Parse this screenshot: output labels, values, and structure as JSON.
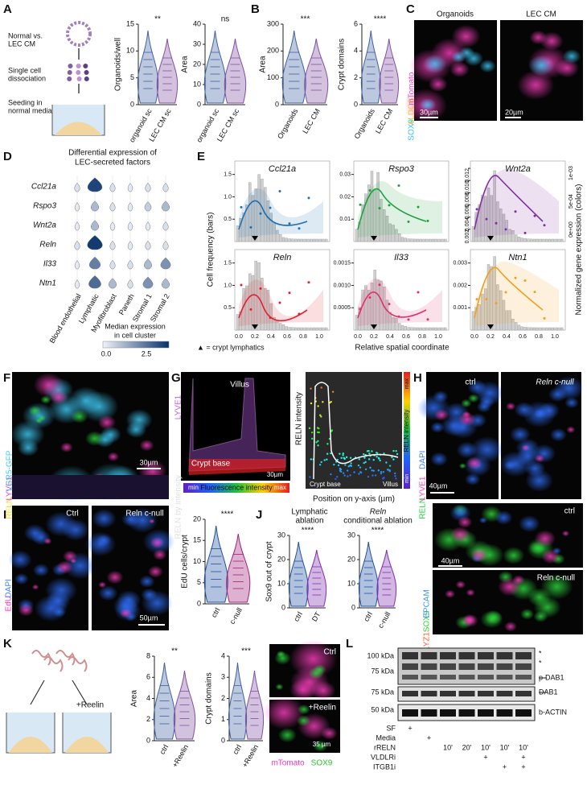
{
  "A": {
    "label": "A",
    "schematic": [
      "Normal vs.",
      "LEC CM",
      "Single cell",
      "dissociation",
      "Seeding in",
      "normal media"
    ],
    "plot1": {
      "ylabel": "Organoids/well",
      "yticks": [
        0,
        5,
        10,
        15
      ],
      "significance": "**",
      "categories": [
        "organoid sc",
        "LEC CM sc"
      ]
    },
    "plot2": {
      "ylabel": "Area",
      "yticks": [
        0,
        10,
        20,
        30,
        40
      ],
      "significance": "ns",
      "categories": [
        "organoid sc",
        "LEC CM sc"
      ]
    }
  },
  "B": {
    "label": "B",
    "plot1": {
      "ylabel": "Area",
      "yticks": [
        0,
        100,
        200,
        300
      ],
      "significance": "***",
      "categories": [
        "Organoids",
        "LEC CM"
      ]
    },
    "plot2": {
      "ylabel": "Crypt domains",
      "yticks": [
        0,
        2,
        4,
        6
      ],
      "significance": "****",
      "categories": [
        "Organoids",
        "LEC CM"
      ]
    }
  },
  "C": {
    "label": "C",
    "titles": [
      "Organoids",
      "LEC CM"
    ],
    "stain": [
      "SOX9",
      "ALDOB",
      "mTomato"
    ],
    "scales": [
      "30µm",
      "20µm"
    ]
  },
  "D": {
    "label": "D",
    "title": [
      "Differential expression of",
      "LEC-secreted factors"
    ],
    "genes": [
      "Ccl21a",
      "Rspo3",
      "Wnt2a",
      "Reln",
      "Il33",
      "Ntn1"
    ],
    "cells": [
      "Blood endothelial",
      "Lymphatic",
      "Myofibroblast",
      "Paneth",
      "Stromal 1",
      "Stromal 2"
    ],
    "colorbar": {
      "label": [
        "Median expression",
        "in cell cluster"
      ],
      "ticks": [
        "0.0",
        "2.5"
      ]
    }
  },
  "E": {
    "label": "E",
    "ylabel": "Cell frequency (bars)",
    "y2label": "Normalized gene expression (colors)",
    "xlabel": "Relative spatial coordinate",
    "legend": "▲ = crypt lymphatics",
    "xticks": [
      "0.0",
      "0.2",
      "0.4",
      "0.6",
      "0.8",
      "1.0"
    ],
    "panels": [
      {
        "gene": "Ccl21a",
        "yticks": [
          "0.5",
          "1.0",
          "1.5"
        ]
      },
      {
        "gene": "Rspo3",
        "yticks": [
          "0.01",
          "0.02",
          "0.03"
        ]
      },
      {
        "gene": "Wnt2a",
        "yticks": [
          "0.002",
          "0.004",
          "0.006",
          "0.008",
          "0.010",
          "0.012"
        ],
        "y2ticks": [
          "0e+00",
          "5e-04",
          "1e-03"
        ]
      },
      {
        "gene": "Reln",
        "yticks": [
          "0.5",
          "1.0",
          "1.5"
        ]
      },
      {
        "gene": "Il33",
        "yticks": [
          "0.0005",
          "0.0010",
          "0.0015"
        ]
      },
      {
        "gene": "Ntn1",
        "yticks": [
          "0.001",
          "0.002",
          "0.003"
        ]
      }
    ]
  },
  "F": {
    "label": "F",
    "stain": [
      "RELN",
      "LYVE1",
      "LGR5-GFP"
    ],
    "scale": "30µm"
  },
  "G": {
    "label": "G",
    "stain": [
      "RELN by intensity",
      "LYVE1"
    ],
    "villus": "Villus",
    "crypt": "Crypt base",
    "scale": "30µm",
    "colorbar": [
      "min",
      "Fluorescence intensity",
      "max"
    ],
    "plot": {
      "ylabel": "RELN intensity",
      "crypt": "Crypt base",
      "villus": "Villus",
      "xlabel": "Position on y-axis (µm)",
      "colorbar": [
        "min",
        "RELN intensity",
        "max"
      ]
    }
  },
  "H": {
    "label": "H",
    "stain": [
      "RELN",
      "LYVE1",
      "DAPI"
    ],
    "titles": [
      "ctrl",
      "Reln c-null"
    ],
    "scale": "40µm"
  },
  "I": {
    "label": "I",
    "stain": [
      "EdU",
      "DAPI"
    ],
    "titles": [
      "Ctrl",
      "Reln c-null"
    ],
    "scale": "50µm",
    "plot": {
      "ylabel": "EdU cells/crypt",
      "yticks": [
        0,
        5,
        10,
        15,
        20
      ],
      "significance": "****",
      "categories": [
        "ctrl",
        "c-null"
      ]
    }
  },
  "J": {
    "label": "J",
    "titles": [
      [
        "Lymphatic",
        "ablation"
      ],
      [
        "Reln",
        "conditional ablation"
      ]
    ],
    "plot1": {
      "ylabel": "Sox9 out of crypt",
      "yticks": [
        0,
        10,
        20,
        30
      ],
      "significance": "****",
      "categories": [
        "ctrl",
        "DT"
      ]
    },
    "plot2": {
      "yticks": [
        0,
        10,
        20,
        30
      ],
      "significance": "****",
      "categories": [
        "ctrl",
        "c-null"
      ]
    },
    "images": [
      "ctrl",
      "Reln c-null"
    ],
    "scale": "40µm",
    "stain": [
      "LYZ1",
      "SOX9",
      "EPCAM"
    ]
  },
  "K": {
    "label": "K",
    "treatment": "+Reelin",
    "plot1": {
      "ylabel": "Area",
      "yticks": [
        0,
        2,
        4,
        6,
        8
      ],
      "significance": "**",
      "categories": [
        "ctrl",
        "+Reelin"
      ]
    },
    "plot2": {
      "ylabel": "Crypt domains",
      "yticks": [
        0,
        1,
        2,
        3,
        4
      ],
      "significance": "***",
      "categories": [
        "ctrl",
        "+Reelin"
      ]
    },
    "images": [
      "Ctrl",
      "+Reelin"
    ],
    "scale": "35 µm",
    "stain": [
      "mTomato",
      "SOX9"
    ]
  },
  "L": {
    "label": "L",
    "markers": [
      "100 kDa",
      "75 kDa",
      "75 kDa",
      "50 kDa"
    ],
    "bands": [
      "*",
      "*",
      "p-DAB1",
      "DAB1",
      "b-ACTIN"
    ],
    "conditions": [
      {
        "name": "SF",
        "cells": [
          "+",
          null,
          null,
          null,
          null,
          null,
          null
        ]
      },
      {
        "name": "Media",
        "cells": [
          null,
          "+",
          null,
          null,
          null,
          null,
          null
        ]
      },
      {
        "name": "rRELN",
        "cells": [
          null,
          null,
          "10'",
          "20'",
          "10'",
          "10'",
          "10'"
        ]
      },
      {
        "name": "VLDLRi",
        "cells": [
          null,
          null,
          null,
          null,
          "+",
          null,
          "+"
        ]
      },
      {
        "name": "ITGB1i",
        "cells": [
          null,
          null,
          null,
          null,
          null,
          "+",
          "+"
        ]
      }
    ]
  }
}
